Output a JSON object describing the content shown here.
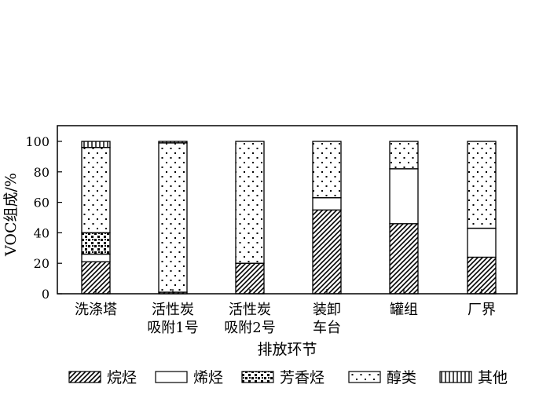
{
  "chart_data": {
    "type": "bar",
    "stacked": true,
    "title": "",
    "xlabel": "排放环节",
    "ylabel": "VOC组成/%",
    "ylim": [
      0,
      100
    ],
    "yticks": [
      "0",
      "20",
      "40",
      "60",
      "80",
      "100"
    ],
    "categories": [
      [
        "洗涤塔"
      ],
      [
        "活性炭",
        "吸附1号"
      ],
      [
        "活性炭",
        "吸附2号"
      ],
      [
        "装卸",
        "车台"
      ],
      [
        "罐组"
      ],
      [
        "厂界"
      ]
    ],
    "series": [
      {
        "name": "烷烃",
        "pattern": "diagonal-hatch",
        "values": [
          21,
          1,
          20,
          55,
          46,
          24
        ]
      },
      {
        "name": "烯烃",
        "pattern": "blank",
        "values": [
          5,
          0,
          0,
          8,
          36,
          19
        ]
      },
      {
        "name": "芳香烃",
        "pattern": "dense-dots",
        "values": [
          14,
          0,
          0,
          0,
          0,
          0
        ]
      },
      {
        "name": "醇类",
        "pattern": "sparse-dots",
        "values": [
          56,
          98,
          80,
          37,
          18,
          57
        ]
      },
      {
        "name": "其他",
        "pattern": "vertical-lines",
        "values": [
          4,
          1,
          0,
          0,
          0,
          0
        ]
      }
    ],
    "legend_position": "bottom",
    "grid": false,
    "colors": {
      "stroke": "#000000",
      "fill": "#ffffff"
    }
  }
}
